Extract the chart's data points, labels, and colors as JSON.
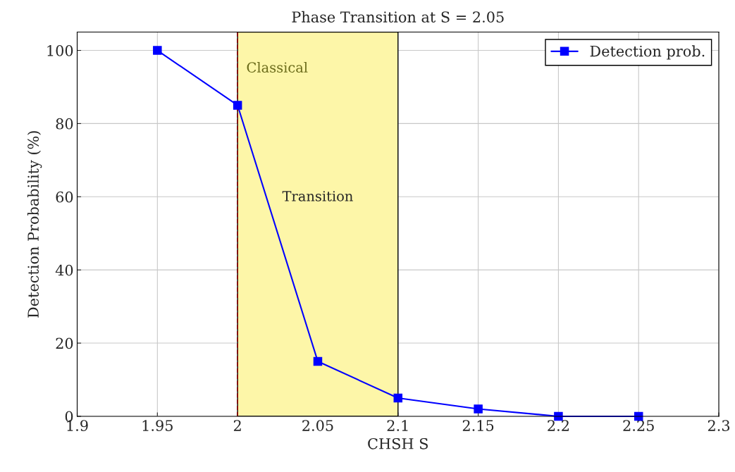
{
  "chart_data": {
    "type": "line",
    "title": "Phase Transition at S = 2.05",
    "xlabel": "CHSH S",
    "ylabel": "Detection Probability (%)",
    "x": [
      1.95,
      2,
      2.05,
      2.1,
      2.15,
      2.2,
      2.25
    ],
    "series": [
      {
        "name": "Detection prob.",
        "color": "#0000ff",
        "values": [
          100,
          85,
          15,
          5,
          2,
          0,
          0
        ]
      }
    ],
    "xlim": [
      1.9,
      2.3
    ],
    "xticks": [
      1.9,
      1.95,
      2,
      2.05,
      2.1,
      2.15,
      2.2,
      2.25,
      2.3
    ],
    "ylim": [
      0,
      105
    ],
    "yticks": [
      0,
      20,
      40,
      60,
      80,
      100
    ],
    "ref_lines": [
      {
        "axis": "x",
        "value": 2,
        "label": "Classical",
        "color": "#8b0000",
        "line_style": "dashed"
      }
    ],
    "bands": [
      {
        "axis": "x",
        "from": 2,
        "to": 2.1,
        "label": "Transition",
        "color": "#fdf6a8"
      }
    ],
    "grid": true,
    "legend": "top right",
    "marker": "square",
    "line_style": "solid"
  }
}
